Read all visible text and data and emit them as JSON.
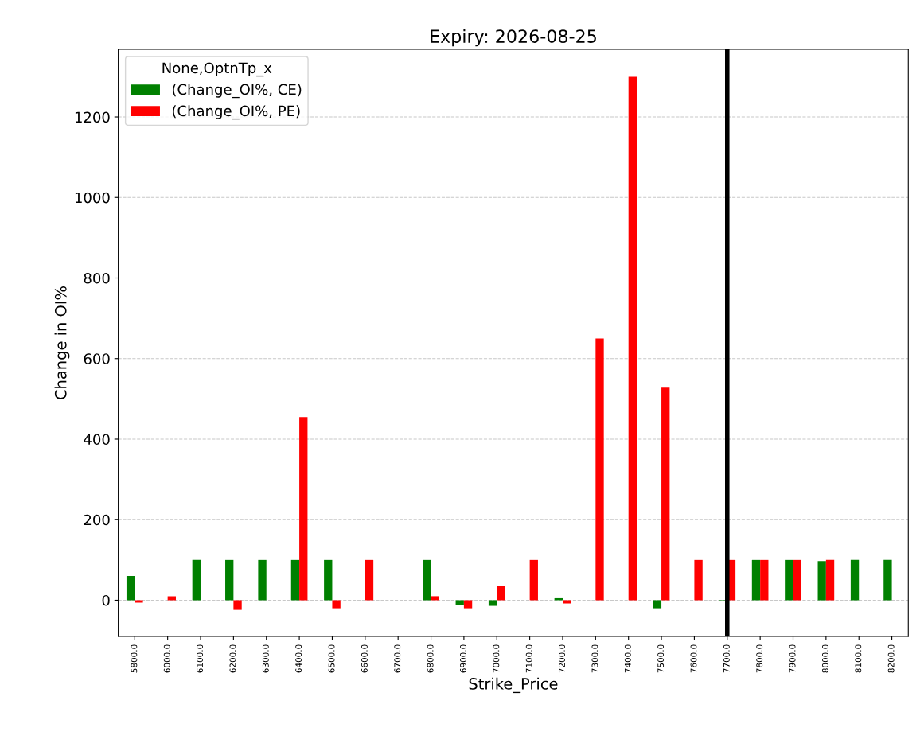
{
  "chart_data": {
    "type": "bar",
    "title": "Expiry: 2026-08-25",
    "xlabel": "Strike_Price",
    "ylabel": "Change in OI%",
    "legend_title": "None,OptnTp_x",
    "categories": [
      "5800.0",
      "6000.0",
      "6100.0",
      "6200.0",
      "6300.0",
      "6400.0",
      "6500.0",
      "6600.0",
      "6700.0",
      "6800.0",
      "6900.0",
      "7000.0",
      "7100.0",
      "7200.0",
      "7300.0",
      "7400.0",
      "7500.0",
      "7600.0",
      "7700.0",
      "7800.0",
      "7900.0",
      "8000.0",
      "8100.0",
      "8200.0"
    ],
    "series": [
      {
        "name": "(Change_OI%, CE)",
        "color": "#008000",
        "values": [
          60,
          null,
          100,
          100,
          100,
          100,
          100,
          null,
          null,
          100,
          -12,
          -14,
          null,
          5,
          null,
          null,
          -20,
          null,
          -1,
          100,
          100,
          97,
          100,
          100
        ]
      },
      {
        "name": "(Change_OI%, PE)",
        "color": "#ff0000",
        "values": [
          -6,
          10,
          null,
          -24,
          null,
          455,
          -20,
          100,
          null,
          10,
          -20,
          36,
          100,
          -8,
          650,
          1300,
          528,
          100,
          100,
          100,
          100,
          100,
          null,
          null
        ]
      }
    ],
    "ylim": [
      -90,
      1368
    ],
    "yticks": [
      0,
      200,
      400,
      600,
      800,
      1000,
      1200
    ],
    "ref_lines": [
      {
        "axis": "x",
        "value": "7700.0",
        "color": "#000000"
      }
    ],
    "grid": "y",
    "legend": "top left"
  }
}
